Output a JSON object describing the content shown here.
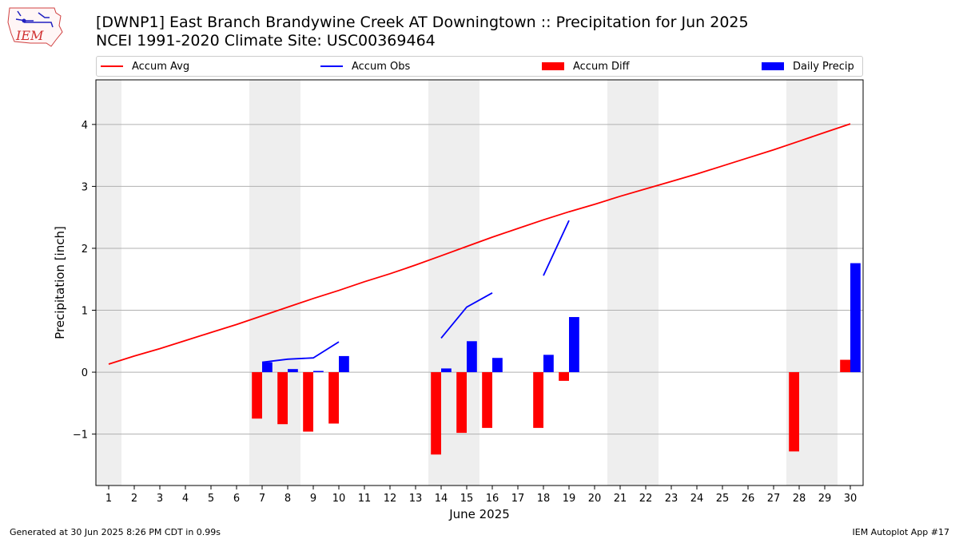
{
  "header": {
    "title_line1": "[DWNP1] East Branch Brandywine Creek  AT Downingtown :: Precipitation for Jun 2025",
    "title_line2": "NCEI 1991-2020 Climate Site: USC00369464",
    "logo_text": "IEM"
  },
  "legend": {
    "accum_avg": "Accum Avg",
    "accum_obs": "Accum Obs",
    "accum_diff": "Accum Diff",
    "daily_precip": "Daily Precip"
  },
  "footer": {
    "generated": "Generated at 30 Jun 2025 8:26 PM CDT in 0.99s",
    "app": "IEM Autoplot App #17"
  },
  "colors": {
    "accum_avg": "#ff0000",
    "accum_obs": "#0000ff",
    "accum_diff": "#ff0000",
    "daily_precip": "#0000ff",
    "weekend_shade": "#eeeeee",
    "grid": "#b0b0b0"
  },
  "chart_data": {
    "type": "bar",
    "xlabel": "June 2025",
    "ylabel": "Precipitation [inch]",
    "x": [
      1,
      2,
      3,
      4,
      5,
      6,
      7,
      8,
      9,
      10,
      11,
      12,
      13,
      14,
      15,
      16,
      17,
      18,
      19,
      20,
      21,
      22,
      23,
      24,
      25,
      26,
      27,
      28,
      29,
      30
    ],
    "xlim": [
      0.5,
      30.5
    ],
    "ylim": [
      -1.83,
      4.72
    ],
    "yticks": [
      -1,
      0,
      1,
      2,
      3,
      4
    ],
    "ytick_labels": [
      "−1",
      "0",
      "1",
      "2",
      "3",
      "4"
    ],
    "grid": "horizontal",
    "legend_position": "top",
    "weekend_days": [
      1,
      7,
      8,
      14,
      15,
      21,
      22,
      28,
      29
    ],
    "series": [
      {
        "name": "Accum Avg",
        "type": "line",
        "values": [
          0.13,
          0.26,
          0.38,
          0.51,
          0.64,
          0.77,
          0.91,
          1.05,
          1.19,
          1.32,
          1.46,
          1.59,
          1.73,
          1.88,
          2.03,
          2.18,
          2.32,
          2.46,
          2.59,
          2.71,
          2.84,
          2.96,
          3.08,
          3.2,
          3.33,
          3.46,
          3.59,
          3.73,
          3.87,
          4.01
        ]
      },
      {
        "name": "Accum Obs",
        "type": "line",
        "values": [
          null,
          null,
          null,
          null,
          null,
          null,
          0.16,
          0.21,
          0.23,
          0.49,
          null,
          null,
          null,
          0.55,
          1.05,
          1.28,
          null,
          1.56,
          2.45,
          null,
          null,
          null,
          null,
          null,
          null,
          null,
          null,
          null,
          null,
          null
        ]
      },
      {
        "name": "Accum Diff",
        "type": "bar",
        "values": [
          null,
          null,
          null,
          null,
          null,
          null,
          -0.75,
          -0.84,
          -0.96,
          -0.83,
          null,
          null,
          null,
          -1.33,
          -0.98,
          -0.9,
          null,
          -0.9,
          -0.14,
          null,
          null,
          null,
          null,
          null,
          null,
          null,
          null,
          -1.28,
          null,
          0.2
        ]
      },
      {
        "name": "Daily Precip",
        "type": "bar",
        "values": [
          null,
          null,
          null,
          null,
          null,
          null,
          0.16,
          0.05,
          0.02,
          0.26,
          null,
          null,
          null,
          0.06,
          0.5,
          0.23,
          null,
          0.28,
          0.89,
          null,
          null,
          null,
          null,
          null,
          null,
          null,
          null,
          null,
          null,
          1.76
        ]
      }
    ]
  }
}
